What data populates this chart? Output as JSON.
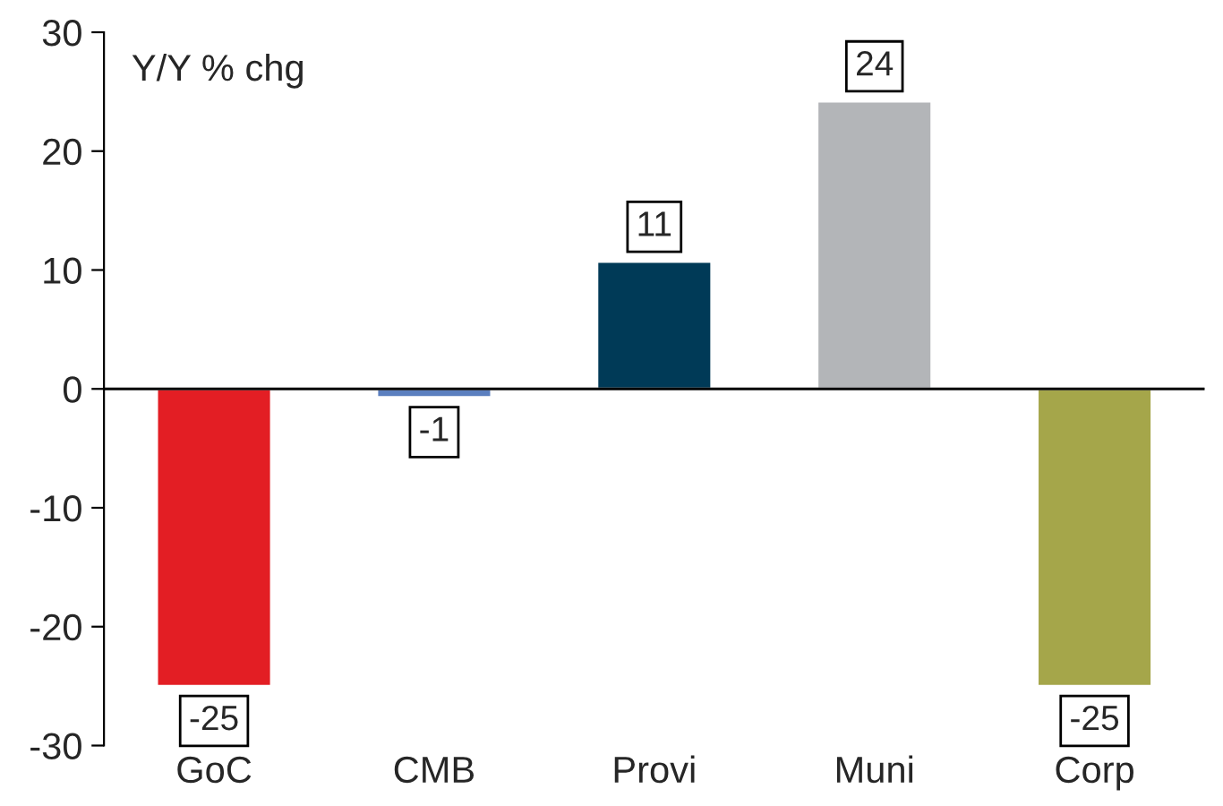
{
  "chart_data": {
    "type": "bar",
    "ylabel": "Y/Y % chg",
    "categories": [
      "GoC",
      "CMB",
      "Provi",
      "Muni",
      "Corp"
    ],
    "values": [
      -25,
      -0.7,
      10.7,
      24.2,
      -25
    ],
    "value_labels": [
      "-25",
      "-1",
      "11",
      "24",
      "-25"
    ],
    "colors": [
      "#e31e24",
      "#5b7fbf",
      "#003a57",
      "#b3b5b8",
      "#a5a64a"
    ],
    "ylim": [
      -30,
      30
    ],
    "yticks": [
      -30,
      -20,
      -10,
      0,
      10,
      20,
      30
    ],
    "ref_lines": [
      {
        "axis": "y",
        "value": 0,
        "color": "#000000"
      }
    ],
    "grid": false,
    "legend": false
  }
}
